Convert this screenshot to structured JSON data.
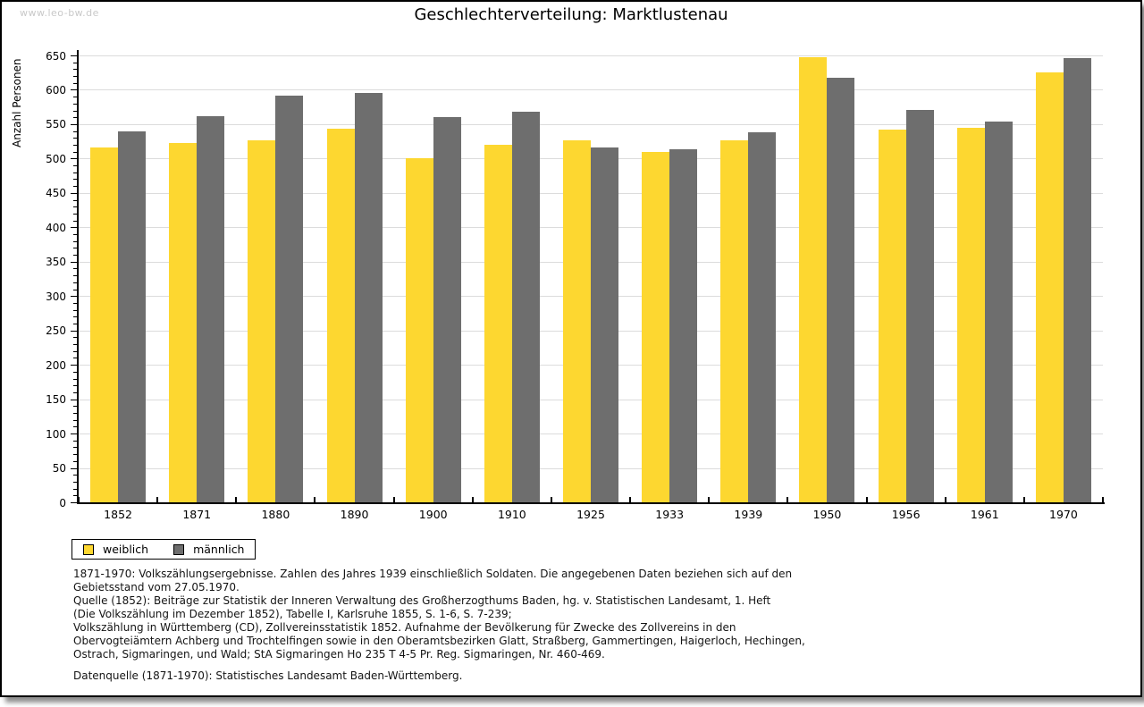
{
  "watermark": "www.leo-bw.de",
  "chart_data": {
    "type": "bar",
    "title": "Geschlechterverteilung: Marktlustenau",
    "xlabel": "",
    "ylabel": "Anzahl Personen",
    "ylim": [
      0,
      650
    ],
    "ytick_step": 50,
    "ytick_minor_step": 10,
    "grid": "horizontal-major",
    "legend_position": "bottom-left",
    "categories": [
      "1852",
      "1871",
      "1880",
      "1890",
      "1900",
      "1910",
      "1925",
      "1933",
      "1939",
      "1950",
      "1956",
      "1961",
      "1970"
    ],
    "series": [
      {
        "name": "weiblich",
        "color": "#FDD730",
        "values": [
          516,
          523,
          527,
          543,
          500,
          520,
          527,
          509,
          526,
          648,
          542,
          545,
          625
        ]
      },
      {
        "name": "männlich",
        "color": "#6E6E6E",
        "values": [
          539,
          561,
          591,
          595,
          560,
          568,
          516,
          514,
          538,
          618,
          571,
          554,
          646
        ]
      }
    ]
  },
  "footnotes": {
    "lines": [
      "1871-1970: Volkszählungsergebnisse. Zahlen des Jahres 1939 einschließlich Soldaten. Die angegebenen Daten beziehen sich auf den",
      "Gebietsstand vom 27.05.1970.",
      "Quelle (1852): Beiträge zur Statistik der Inneren Verwaltung des Großherzogthums Baden, hg. v. Statistischen Landesamt, 1. Heft",
      "(Die Volkszählung im Dezember 1852), Tabelle I, Karlsruhe 1855, S. 1-6, S. 7-239;",
      "Volkszählung in Württemberg (CD), Zollvereinsstatistik 1852. Aufnahme der Bevölkerung für Zwecke des Zollvereins in den",
      "Obervogteiämtern Achberg und Trochtelfingen sowie in den Oberamtsbezirken Glatt, Straßberg, Gammertingen, Haigerloch, Hechingen,",
      "Ostrach, Sigmaringen, und Wald; StA Sigmaringen Ho 235 T 4-5 Pr. Reg. Sigmaringen, Nr. 460-469."
    ],
    "datasource": "Datenquelle (1871-1970): Statistisches Landesamt Baden-Württemberg."
  }
}
